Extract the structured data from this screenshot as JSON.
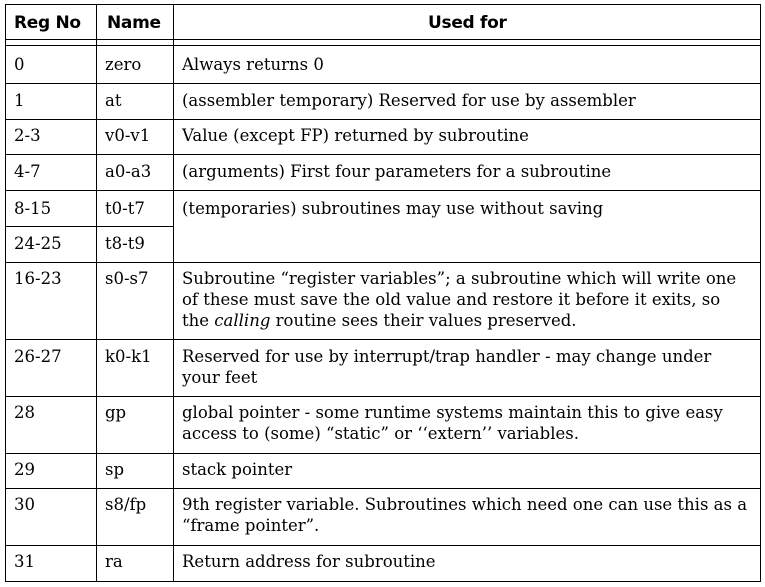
{
  "headers": {
    "reg": "Reg No",
    "name": "Name",
    "used": "Used for"
  },
  "rows": [
    {
      "reg": "0",
      "name": "zero",
      "used": "Always returns 0"
    },
    {
      "reg": "1",
      "name": "at",
      "used": "(assembler temporary) Reserved for use by assembler"
    },
    {
      "reg": "2-3",
      "name": "v0-v1",
      "used": "Value (except FP) returned by subroutine"
    },
    {
      "reg": "4-7",
      "name": "a0-a3",
      "used": "(arguments) First four parameters for a subroutine"
    },
    {
      "reg": "8-15",
      "name": "t0-t7",
      "used": "(temporaries) subroutines may use without saving"
    },
    {
      "reg": "24-25",
      "name": "t8-t9"
    },
    {
      "reg": "16-23",
      "name": "s0-s7",
      "used_a": "Subroutine “register variables”; a subroutine which will write one of these must save the old value and restore it before it exits, so the ",
      "used_em": "calling",
      "used_b": " routine sees their values preserved."
    },
    {
      "reg": "26-27",
      "name": "k0-k1",
      "used": "Reserved for use by interrupt/trap handler - may change under your feet"
    },
    {
      "reg": "28",
      "name": "gp",
      "used": "global pointer - some runtime systems maintain this to give easy access to (some) “static” or ‘‘extern’’ variables."
    },
    {
      "reg": "29",
      "name": "sp",
      "used": "stack pointer"
    },
    {
      "reg": "30",
      "name": "s8/fp",
      "used": "9th register variable. Subroutines which need one can use this as a “frame pointer”."
    },
    {
      "reg": "31",
      "name": "ra",
      "used": "Return address for subroutine"
    }
  ]
}
